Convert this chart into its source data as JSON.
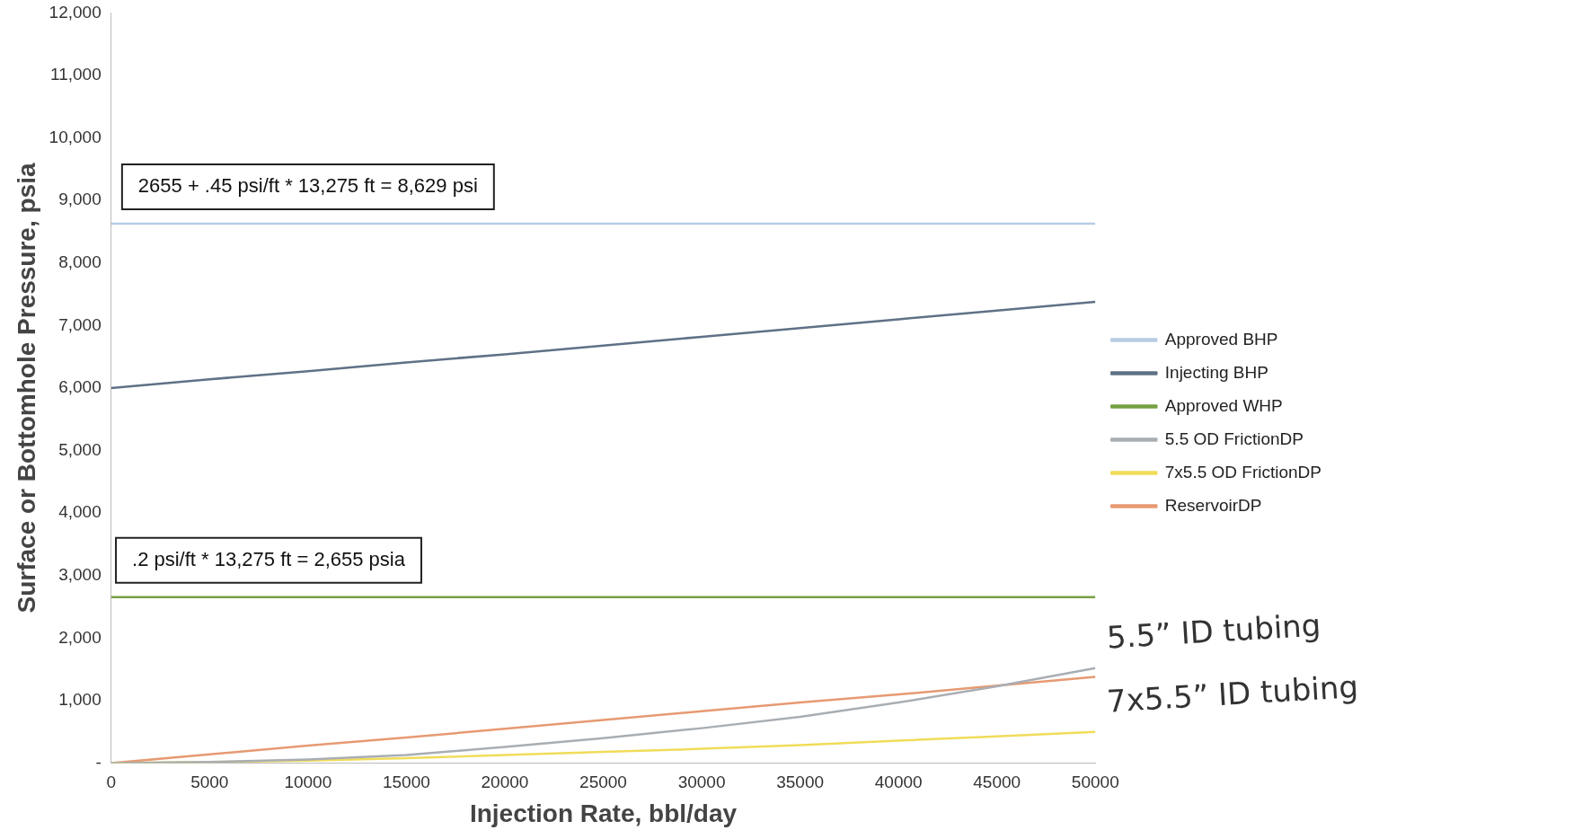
{
  "chart_data": {
    "type": "line",
    "xlabel": "Injection Rate, bbl/day",
    "ylabel": "Surface or Bottomhole Pressure, psia",
    "xlim": [
      0,
      50000
    ],
    "xticks": [
      0,
      5000,
      10000,
      15000,
      20000,
      25000,
      30000,
      35000,
      40000,
      45000,
      50000
    ],
    "ylim": [
      0,
      12000
    ],
    "yticks": [
      {
        "value": 0,
        "label": "-"
      },
      {
        "value": 1000,
        "label": "1,000"
      },
      {
        "value": 2000,
        "label": "2,000"
      },
      {
        "value": 3000,
        "label": "3,000"
      },
      {
        "value": 4000,
        "label": "4,000"
      },
      {
        "value": 5000,
        "label": "5,000"
      },
      {
        "value": 6000,
        "label": "6,000"
      },
      {
        "value": 7000,
        "label": "7,000"
      },
      {
        "value": 8000,
        "label": "8,000"
      },
      {
        "value": 9000,
        "label": "9,000"
      },
      {
        "value": 10000,
        "label": "10,000"
      },
      {
        "value": 11000,
        "label": "11,000"
      },
      {
        "value": 12000,
        "label": "12,000"
      }
    ],
    "x": [
      0,
      5000,
      10000,
      15000,
      20000,
      25000,
      30000,
      35000,
      40000,
      45000,
      50000
    ],
    "series": [
      {
        "name": "Approved BHP",
        "color": "#b7cde4",
        "values": [
          8629,
          8629,
          8629,
          8629,
          8629,
          8629,
          8629,
          8629,
          8629,
          8629,
          8629
        ]
      },
      {
        "name": "Injecting BHP",
        "color": "#5f7186",
        "values": [
          6000,
          6140,
          6270,
          6410,
          6540,
          6680,
          6820,
          6960,
          7100,
          7240,
          7380
        ]
      },
      {
        "name": "Approved WHP",
        "color": "#77a043",
        "values": [
          2655,
          2655,
          2655,
          2655,
          2655,
          2655,
          2655,
          2655,
          2655,
          2655,
          2655
        ]
      },
      {
        "name": "5.5 OD FrictionDP",
        "color": "#a9aeb3",
        "values": [
          0,
          20,
          60,
          130,
          260,
          400,
          560,
          740,
          970,
          1230,
          1520
        ]
      },
      {
        "name": "7x5.5 OD FrictionDP",
        "color": "#f0dc5a",
        "values": [
          0,
          20,
          40,
          80,
          130,
          180,
          230,
          290,
          360,
          430,
          500
        ]
      },
      {
        "name": "ReservoirDP",
        "color": "#e69a72",
        "values": [
          0,
          140,
          280,
          410,
          550,
          690,
          830,
          970,
          1100,
          1240,
          1380
        ]
      }
    ],
    "annotations": [
      {
        "text": "2655 + .45 psi/ft * 13,275 ft = 8,629 psi",
        "x": 10000,
        "y": 8629
      },
      {
        "text": ".2 psi/ft * 13,275 ft = 2,655 psia",
        "x": 8000,
        "y": 2655
      },
      {
        "text": "5.5” ID tubing",
        "x": 50000,
        "y": 1520
      },
      {
        "text": "7x5.5” ID tubing",
        "x": 50000,
        "y": 500
      }
    ],
    "legend": "right",
    "grid": false,
    "marker": "none",
    "line_style": "solid"
  }
}
